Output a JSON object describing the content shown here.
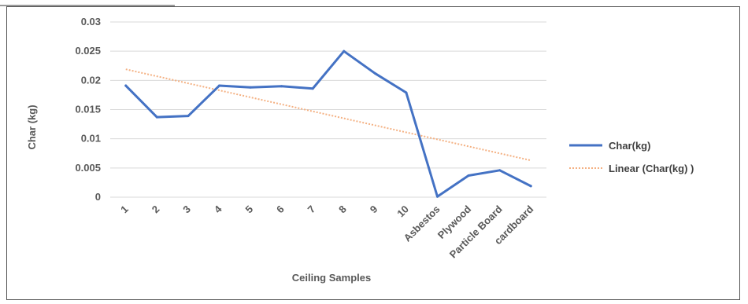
{
  "chart_data": {
    "type": "line",
    "title": "",
    "xlabel": "Ceiling Samples",
    "ylabel": "Char (kg)",
    "ylim": [
      0,
      0.03
    ],
    "yticks": [
      "0",
      "0.005",
      "0.01",
      "0.015",
      "0.02",
      "0.025",
      "0.03"
    ],
    "grid": true,
    "legend_position": "right",
    "categories": [
      "1",
      "2",
      "3",
      "4",
      "5",
      "6",
      "7",
      "8",
      "9",
      "10",
      "Asbestos",
      "Plywood",
      "Particle Board",
      "cardboard"
    ],
    "series": [
      {
        "name": "Char(kg)",
        "color": "#4472C4",
        "values": [
          0.0191,
          0.0137,
          0.0139,
          0.0191,
          0.0188,
          0.019,
          0.0186,
          0.025,
          0.0212,
          0.0179,
          0.0001,
          0.0037,
          0.0046,
          0.0019
        ]
      }
    ],
    "trendline": {
      "name": "Linear (Char(kg) )",
      "type": "linear",
      "color": "#F4B183",
      "start_value": 0.0219,
      "end_value": 0.0063
    }
  }
}
